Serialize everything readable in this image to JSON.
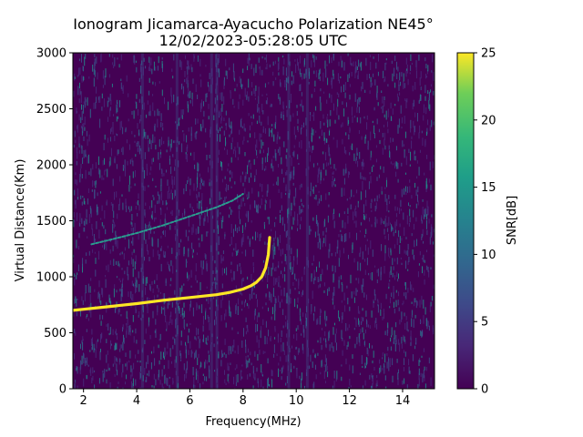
{
  "chart_data": {
    "type": "heatmap",
    "title": "Ionogram Jicamarca-Ayacucho Polarization NE45°",
    "subtitle": "12/02/2023-05:28:05 UTC",
    "xlabel": "Frequency(MHz)",
    "ylabel": "Virtual Distance(Km)",
    "xlim": [
      1.6,
      15.2
    ],
    "ylim": [
      0,
      3000
    ],
    "xticks": [
      "2",
      "4",
      "6",
      "8",
      "10",
      "12",
      "14"
    ],
    "xtick_values": [
      2,
      4,
      6,
      8,
      10,
      12,
      14
    ],
    "yticks": [
      "0",
      "500",
      "1000",
      "1500",
      "2000",
      "2500",
      "3000"
    ],
    "ytick_values": [
      0,
      500,
      1000,
      1500,
      2000,
      2500,
      3000
    ],
    "colorbar": {
      "label": "SNR[dB]",
      "range": [
        0,
        25
      ],
      "ticks": [
        "0",
        "5",
        "10",
        "15",
        "20",
        "25"
      ],
      "tick_values": [
        0,
        5,
        10,
        15,
        20,
        25
      ],
      "colormap": "viridis"
    },
    "grid": false,
    "series": [
      {
        "trace": "primary-echo",
        "snr_db": 25,
        "x": [
          1.6,
          2.0,
          3.0,
          4.0,
          5.0,
          6.0,
          7.0,
          7.5,
          8.0,
          8.3,
          8.5,
          8.7,
          8.85,
          8.95,
          9.0
        ],
        "y": [
          700,
          710,
          735,
          760,
          790,
          815,
          840,
          860,
          890,
          920,
          950,
          1000,
          1080,
          1200,
          1350
        ]
      },
      {
        "trace": "second-hop-echo",
        "snr_db": 12,
        "x": [
          2.3,
          3.0,
          4.0,
          5.0,
          6.0,
          7.0,
          7.6,
          8.0
        ],
        "y": [
          1290,
          1330,
          1390,
          1460,
          1540,
          1620,
          1680,
          1740
        ]
      }
    ]
  }
}
